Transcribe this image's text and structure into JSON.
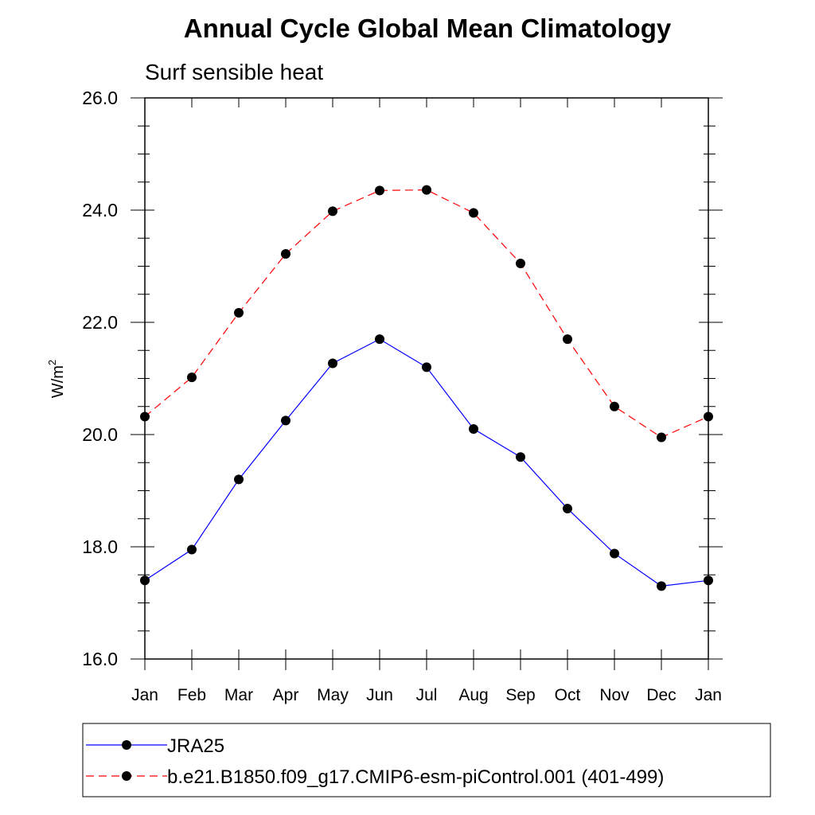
{
  "chart_data": {
    "type": "line",
    "title": "Annual Cycle Global Mean Climatology",
    "subtitle": "Surf sensible heat",
    "xlabel": "",
    "ylabel_base": "W/m",
    "ylabel_sup": "2",
    "categories": [
      "Jan",
      "Feb",
      "Mar",
      "Apr",
      "May",
      "Jun",
      "Jul",
      "Aug",
      "Sep",
      "Oct",
      "Nov",
      "Dec",
      "Jan"
    ],
    "ylim": [
      16.0,
      26.0
    ],
    "y_ticks": [
      "16.0",
      "18.0",
      "20.0",
      "22.0",
      "24.0",
      "26.0"
    ],
    "grid": false,
    "legend_position": "bottom",
    "series": [
      {
        "name": "JRA25",
        "color": "#0000ff",
        "line_style": "solid",
        "marker": "filled-circle",
        "values": [
          17.4,
          17.95,
          19.2,
          20.25,
          21.27,
          21.7,
          21.2,
          20.1,
          19.6,
          18.68,
          17.88,
          17.3,
          17.4
        ]
      },
      {
        "name": "b.e21.B1850.f09_g17.CMIP6-esm-piControl.001 (401-499)",
        "color": "#ff0000",
        "line_style": "dashed",
        "marker": "filled-circle",
        "values": [
          20.32,
          21.02,
          22.17,
          23.22,
          23.98,
          24.35,
          24.36,
          23.95,
          23.05,
          21.7,
          20.5,
          19.95,
          20.32
        ]
      }
    ]
  }
}
